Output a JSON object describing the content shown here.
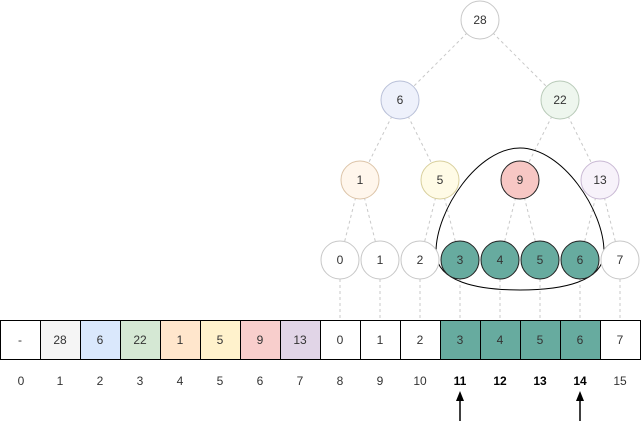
{
  "tree": {
    "levels": [
      [
        {
          "label": "28",
          "fill": "#ffffff",
          "stroke": "#c8c8c8"
        }
      ],
      [
        {
          "label": "6",
          "fill": "#eef1fb",
          "stroke": "#b9c0d8"
        },
        {
          "label": "22",
          "fill": "#eef6ee",
          "stroke": "#b8cab8"
        }
      ],
      [
        {
          "label": "1",
          "fill": "#fff6ec",
          "stroke": "#dcc4a8"
        },
        {
          "label": "5",
          "fill": "#fffbe6",
          "stroke": "#d8cf9c"
        },
        {
          "label": "9",
          "fill": "#f7c7c4",
          "stroke": "#222222",
          "highlight": true
        },
        {
          "label": "13",
          "fill": "#f7f2fa",
          "stroke": "#c9b9d4"
        }
      ],
      [
        {
          "label": "0",
          "fill": "#ffffff",
          "stroke": "#c8c8c8"
        },
        {
          "label": "1",
          "fill": "#ffffff",
          "stroke": "#c8c8c8"
        },
        {
          "label": "2",
          "fill": "#ffffff",
          "stroke": "#c8c8c8"
        },
        {
          "label": "3",
          "fill": "#67ab9f",
          "stroke": "#222222",
          "highlight": true
        },
        {
          "label": "4",
          "fill": "#67ab9f",
          "stroke": "#222222",
          "highlight": true
        },
        {
          "label": "5",
          "fill": "#67ab9f",
          "stroke": "#222222",
          "highlight": true
        },
        {
          "label": "6",
          "fill": "#67ab9f",
          "stroke": "#222222",
          "highlight": true
        },
        {
          "label": "7",
          "fill": "#ffffff",
          "stroke": "#c8c8c8"
        }
      ]
    ]
  },
  "array": {
    "cells": [
      {
        "value": "-",
        "fill": "#ffffff"
      },
      {
        "value": "28",
        "fill": "#f5f5f5"
      },
      {
        "value": "6",
        "fill": "#dae8fc"
      },
      {
        "value": "22",
        "fill": "#d5e8d4"
      },
      {
        "value": "1",
        "fill": "#ffe6cc"
      },
      {
        "value": "5",
        "fill": "#fff2cc"
      },
      {
        "value": "9",
        "fill": "#f8cecc"
      },
      {
        "value": "13",
        "fill": "#e1d5e7"
      },
      {
        "value": "0",
        "fill": "#ffffff"
      },
      {
        "value": "1",
        "fill": "#ffffff"
      },
      {
        "value": "2",
        "fill": "#ffffff"
      },
      {
        "value": "3",
        "fill": "#67ab9f"
      },
      {
        "value": "4",
        "fill": "#67ab9f"
      },
      {
        "value": "5",
        "fill": "#67ab9f"
      },
      {
        "value": "6",
        "fill": "#67ab9f"
      },
      {
        "value": "7",
        "fill": "#ffffff"
      }
    ],
    "indices": [
      "0",
      "1",
      "2",
      "3",
      "4",
      "5",
      "6",
      "7",
      "8",
      "9",
      "10",
      "11",
      "12",
      "13",
      "14",
      "15"
    ],
    "bold_indices": [
      11,
      12,
      13,
      14
    ],
    "pointer_indices": [
      11,
      14
    ]
  },
  "colors": {
    "edge": "#c8c8c8",
    "outline": "#000000",
    "text": "#333333"
  }
}
